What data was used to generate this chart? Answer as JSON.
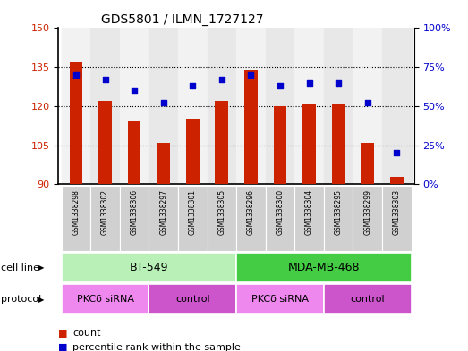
{
  "title": "GDS5801 / ILMN_1727127",
  "samples": [
    "GSM1338298",
    "GSM1338302",
    "GSM1338306",
    "GSM1338297",
    "GSM1338301",
    "GSM1338305",
    "GSM1338296",
    "GSM1338300",
    "GSM1338304",
    "GSM1338295",
    "GSM1338299",
    "GSM1338303"
  ],
  "counts": [
    137,
    122,
    114,
    106,
    115,
    122,
    134,
    120,
    121,
    121,
    106,
    93
  ],
  "percentiles": [
    70,
    67,
    60,
    52,
    63,
    67,
    70,
    63,
    65,
    65,
    52,
    20
  ],
  "ylim_left": [
    90,
    150
  ],
  "ylim_right": [
    0,
    100
  ],
  "yticks_left": [
    90,
    105,
    120,
    135,
    150
  ],
  "yticks_right": [
    0,
    25,
    50,
    75,
    100
  ],
  "bar_color": "#cc2200",
  "dot_color": "#0000cc",
  "bar_bottom": 90,
  "cell_line_groups": [
    {
      "label": "BT-549",
      "start": 0,
      "end": 5,
      "color": "#b8f0b8"
    },
    {
      "label": "MDA-MB-468",
      "start": 6,
      "end": 11,
      "color": "#44cc44"
    }
  ],
  "protocol_groups": [
    {
      "label": "PKCδ siRNA",
      "start": 0,
      "end": 2,
      "color": "#ee88ee"
    },
    {
      "label": "control",
      "start": 3,
      "end": 5,
      "color": "#cc55cc"
    },
    {
      "label": "PKCδ siRNA",
      "start": 6,
      "end": 8,
      "color": "#ee88ee"
    },
    {
      "label": "control",
      "start": 9,
      "end": 11,
      "color": "#cc55cc"
    }
  ],
  "sample_box_color": "#d0d0d0",
  "cell_line_label": "cell line",
  "protocol_label": "protocol",
  "legend_count": "count",
  "legend_percentile": "percentile rank within the sample",
  "tick_color_left": "#cc2200",
  "tick_color_right": "#0000cc"
}
